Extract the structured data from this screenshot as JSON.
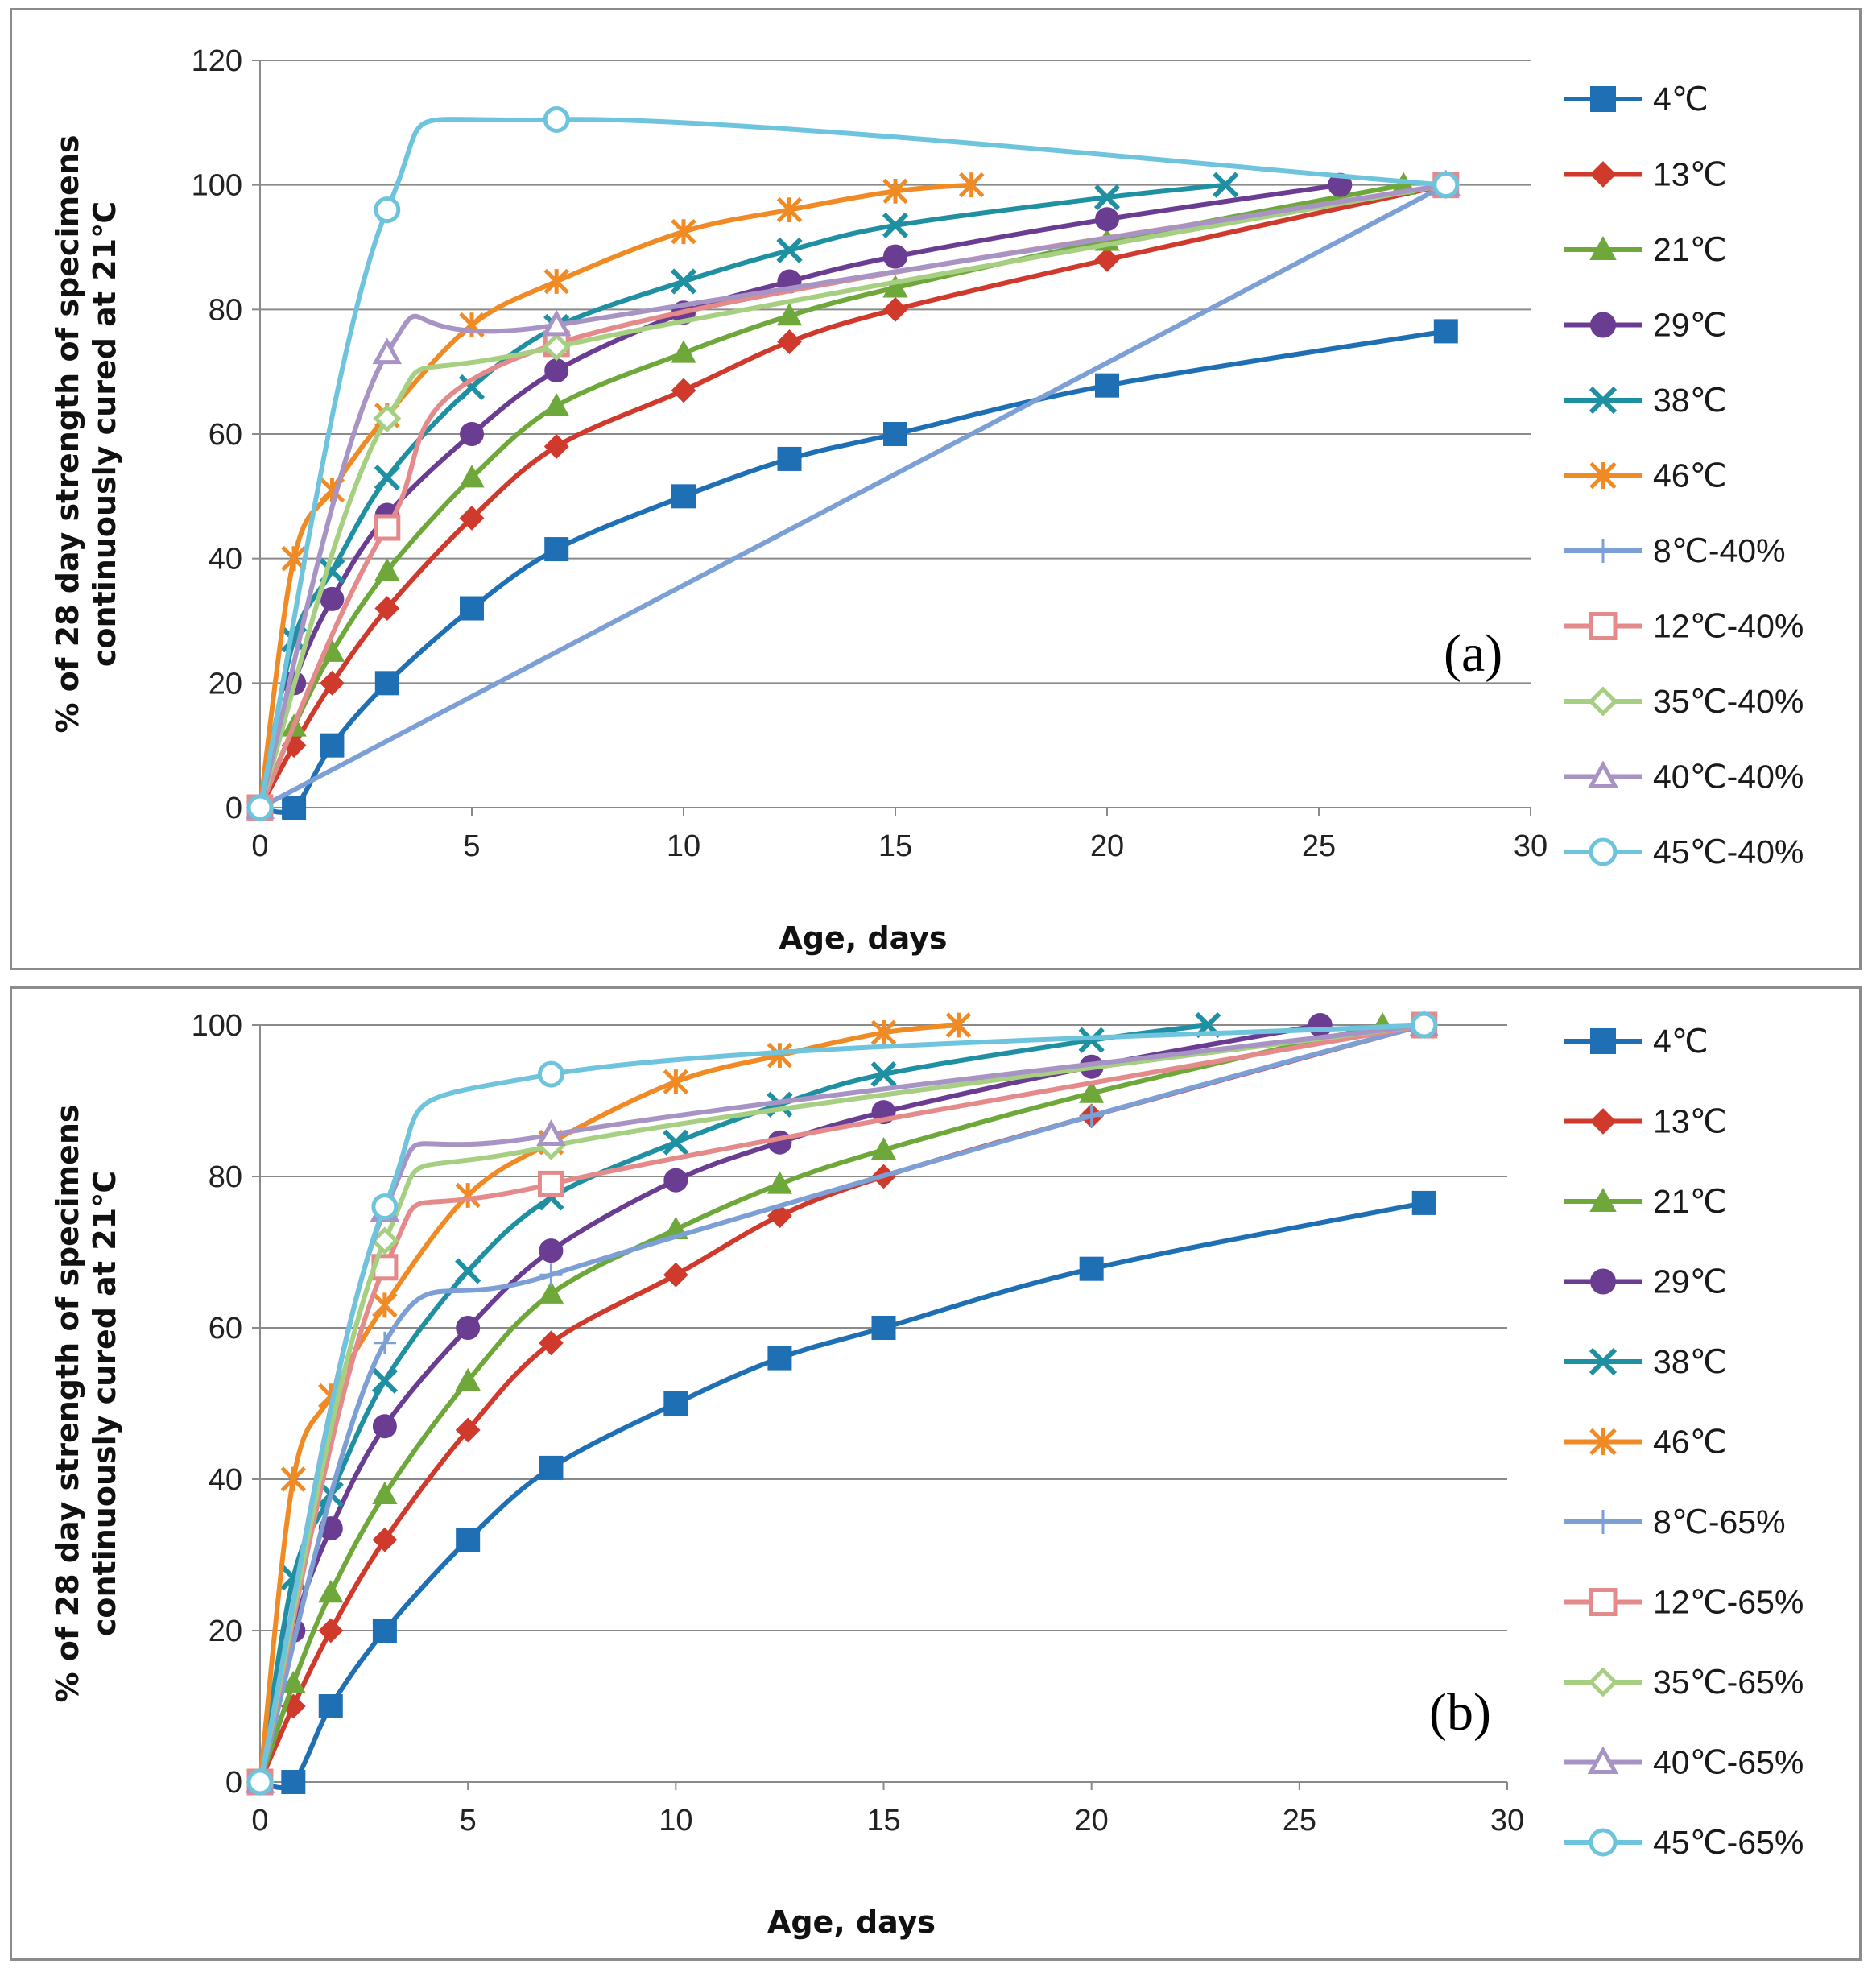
{
  "chart_data": [
    {
      "type": "line",
      "panel_label": "(a)",
      "xlabel": "Age, days",
      "ylabel_lines": [
        "% of 28 day strength of specimens",
        "continuously cured at 21℃"
      ],
      "xlim": [
        0,
        30
      ],
      "ylim": [
        0,
        120
      ],
      "xticks": [
        0,
        5,
        10,
        15,
        20,
        25,
        30
      ],
      "yticks": [
        0,
        20,
        40,
        60,
        80,
        100,
        120
      ],
      "grid": "horizontal",
      "legend": "right",
      "series": [
        {
          "name": "4℃",
          "color": "#1f6fb4",
          "marker": "square",
          "x": [
            0,
            0.8,
            1.7,
            3,
            5,
            7,
            10,
            12.5,
            15,
            20,
            28
          ],
          "y": [
            0,
            0,
            10,
            20,
            32,
            41.5,
            50,
            56,
            60,
            67.8,
            76.5
          ]
        },
        {
          "name": "13℃",
          "color": "#d03a2c",
          "marker": "diamond",
          "x": [
            0,
            0.8,
            1.7,
            3,
            5,
            7,
            10,
            12.5,
            15,
            20,
            28
          ],
          "y": [
            0,
            10,
            20,
            32,
            46.5,
            58,
            67,
            74.8,
            80,
            88,
            100
          ]
        },
        {
          "name": "21℃",
          "color": "#6fa83a",
          "marker": "triangle",
          "x": [
            0,
            0.8,
            1.7,
            3,
            5,
            7,
            10,
            12.5,
            15,
            20,
            27
          ],
          "y": [
            0,
            13,
            25,
            38,
            53,
            64.5,
            73,
            79,
            83.5,
            91,
            100
          ]
        },
        {
          "name": "29℃",
          "color": "#6b3d92",
          "marker": "circle",
          "x": [
            0,
            0.8,
            1.7,
            3,
            5,
            7,
            10,
            12.5,
            15,
            20,
            25.5
          ],
          "y": [
            0,
            20,
            33.5,
            47,
            60,
            70.2,
            79.5,
            84.5,
            88.5,
            94.5,
            100
          ]
        },
        {
          "name": "38℃",
          "color": "#1f8fa2",
          "marker": "x",
          "x": [
            0,
            0.8,
            1.7,
            3,
            5,
            7,
            10,
            12.5,
            15,
            20,
            22.8
          ],
          "y": [
            0,
            27,
            38,
            53,
            67.5,
            77.2,
            84.5,
            89.5,
            93.5,
            98,
            100
          ]
        },
        {
          "name": "46℃",
          "color": "#f08a24",
          "marker": "star",
          "x": [
            0,
            0.8,
            1.7,
            3,
            5,
            7,
            10,
            12.5,
            15,
            16.8
          ],
          "y": [
            0,
            40,
            51,
            63,
            77.5,
            84.5,
            92.5,
            96,
            99,
            100
          ]
        },
        {
          "name": "8℃-40%",
          "color": "#7c9fd6",
          "marker": "plus",
          "x": [
            0,
            28
          ],
          "y": [
            0,
            100
          ]
        },
        {
          "name": "12℃-40%",
          "color": "#e58a8a",
          "marker": "square-open",
          "x": [
            0,
            3,
            7,
            28
          ],
          "y": [
            0,
            45,
            74.5,
            100
          ]
        },
        {
          "name": "35℃-40%",
          "color": "#a6cf82",
          "marker": "diamond-open",
          "x": [
            0,
            3,
            7,
            28
          ],
          "y": [
            0,
            62.5,
            74,
            100
          ]
        },
        {
          "name": "40℃-40%",
          "color": "#a793c4",
          "marker": "triangle-open",
          "x": [
            0,
            3,
            7,
            28
          ],
          "y": [
            0,
            73,
            77.5,
            100
          ]
        },
        {
          "name": "45℃-40%",
          "color": "#6ec4dc",
          "marker": "circle-open",
          "x": [
            0,
            3,
            7,
            28
          ],
          "y": [
            0,
            96,
            110.5,
            100
          ]
        }
      ]
    },
    {
      "type": "line",
      "panel_label": "(b)",
      "xlabel": "Age, days",
      "ylabel_lines": [
        "% of 28 day strength of specimens",
        "continuously cured at 21℃"
      ],
      "xlim": [
        0,
        30
      ],
      "ylim": [
        0,
        100
      ],
      "xticks": [
        0,
        5,
        10,
        15,
        20,
        25,
        30
      ],
      "yticks": [
        0,
        20,
        40,
        60,
        80,
        100
      ],
      "grid": "horizontal",
      "legend": "right",
      "series": [
        {
          "name": "4℃",
          "color": "#1f6fb4",
          "marker": "square",
          "x": [
            0,
            0.8,
            1.7,
            3,
            5,
            7,
            10,
            12.5,
            15,
            20,
            28
          ],
          "y": [
            0,
            0,
            10,
            20,
            32,
            41.5,
            50,
            56,
            60,
            67.8,
            76.5
          ]
        },
        {
          "name": "13℃",
          "color": "#d03a2c",
          "marker": "diamond",
          "x": [
            0,
            0.8,
            1.7,
            3,
            5,
            7,
            10,
            12.5,
            15,
            20,
            28
          ],
          "y": [
            0,
            10,
            20,
            32,
            46.5,
            58,
            67,
            74.8,
            80,
            88,
            100
          ]
        },
        {
          "name": "21℃",
          "color": "#6fa83a",
          "marker": "triangle",
          "x": [
            0,
            0.8,
            1.7,
            3,
            5,
            7,
            10,
            12.5,
            15,
            20,
            27
          ],
          "y": [
            0,
            13,
            25,
            38,
            53,
            64.5,
            73,
            79,
            83.5,
            91,
            100
          ]
        },
        {
          "name": "29℃",
          "color": "#6b3d92",
          "marker": "circle",
          "x": [
            0,
            0.8,
            1.7,
            3,
            5,
            7,
            10,
            12.5,
            15,
            20,
            25.5
          ],
          "y": [
            0,
            20,
            33.5,
            47,
            60,
            70.2,
            79.5,
            84.5,
            88.5,
            94.5,
            100
          ]
        },
        {
          "name": "38℃",
          "color": "#1f8fa2",
          "marker": "x",
          "x": [
            0,
            0.8,
            1.7,
            3,
            5,
            7,
            10,
            12.5,
            15,
            20,
            22.8
          ],
          "y": [
            0,
            27,
            38,
            53,
            67.5,
            77.2,
            84.5,
            89.5,
            93.5,
            98,
            100
          ]
        },
        {
          "name": "46℃",
          "color": "#f08a24",
          "marker": "star",
          "x": [
            0,
            0.8,
            1.7,
            3,
            5,
            7,
            10,
            12.5,
            15,
            16.8
          ],
          "y": [
            0,
            40,
            51,
            63,
            77.5,
            84.5,
            92.5,
            96,
            99,
            100
          ]
        },
        {
          "name": "8℃-65%",
          "color": "#7c9fd6",
          "marker": "plus",
          "x": [
            0,
            3,
            7,
            20,
            28
          ],
          "y": [
            0,
            58,
            67,
            88,
            100
          ]
        },
        {
          "name": "12℃-65%",
          "color": "#e58a8a",
          "marker": "square-open",
          "x": [
            0,
            3,
            7,
            28
          ],
          "y": [
            0,
            68,
            79,
            100
          ]
        },
        {
          "name": "35℃-65%",
          "color": "#a6cf82",
          "marker": "diamond-open",
          "x": [
            0,
            3,
            7,
            28
          ],
          "y": [
            0,
            71.5,
            84,
            100
          ]
        },
        {
          "name": "40℃-65%",
          "color": "#a793c4",
          "marker": "triangle-open",
          "x": [
            0,
            3,
            7,
            28
          ],
          "y": [
            0,
            75.5,
            85.5,
            100
          ]
        },
        {
          "name": "45℃-65%",
          "color": "#6ec4dc",
          "marker": "circle-open",
          "x": [
            0,
            3,
            7,
            28
          ],
          "y": [
            0,
            76,
            93.5,
            100
          ]
        }
      ]
    }
  ]
}
